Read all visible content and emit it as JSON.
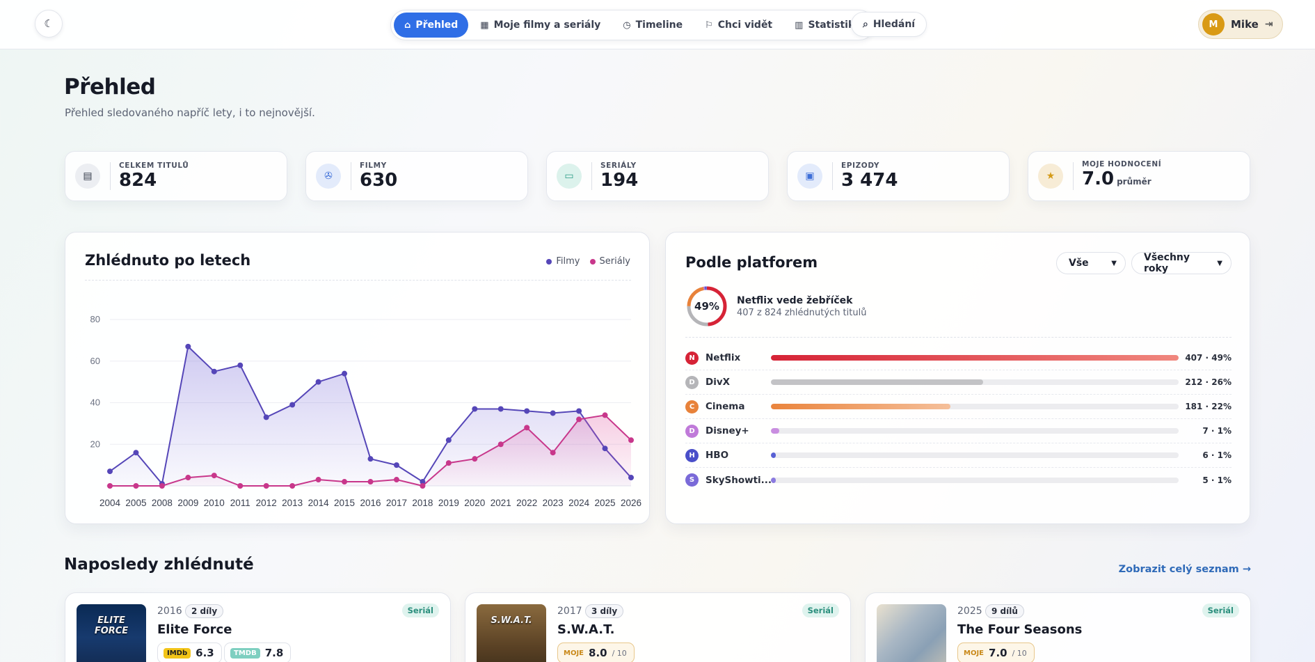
{
  "nav": {
    "items": [
      {
        "label": "Přehled",
        "icon": "home-icon"
      },
      {
        "label": "Moje filmy a seriály",
        "icon": "grid-icon"
      },
      {
        "label": "Timeline",
        "icon": "clock-icon"
      },
      {
        "label": "Chci vidět",
        "icon": "bookmark-icon"
      },
      {
        "label": "Statistiky",
        "icon": "bar-chart-icon"
      }
    ],
    "search_label": "Hledání",
    "user": {
      "initial": "M",
      "name": "Mike"
    }
  },
  "header": {
    "title": "Přehled",
    "subtitle": "Přehled sledovaného napříč lety, i to nejnovější."
  },
  "stats": [
    {
      "label": "CELKEM TITULŮ",
      "value": "824",
      "suffix": "",
      "icon": "calendar-icon",
      "color": "#eceef2",
      "fg": "#333a48"
    },
    {
      "label": "FILMY",
      "value": "630",
      "suffix": "",
      "icon": "film-reel-icon",
      "color": "#e3ebfb",
      "fg": "#3e6fd8"
    },
    {
      "label": "SERIÁLY",
      "value": "194",
      "suffix": "",
      "icon": "tv-icon",
      "color": "#dcf2ec",
      "fg": "#2b9c86"
    },
    {
      "label": "EPIZODY",
      "value": "3 474",
      "suffix": "",
      "icon": "episodes-icon",
      "color": "#e3ebfb",
      "fg": "#3e6fd8"
    },
    {
      "label": "MOJE HODNOCENÍ",
      "value": "7.0",
      "suffix": "průměr",
      "icon": "star-icon",
      "color": "#f7ecd6",
      "fg": "#d49a18"
    }
  ],
  "chart_panel": {
    "title": "Zhlédnuto po letech"
  },
  "chart_data": {
    "type": "line",
    "title": "Zhlédnuto po letech",
    "x": [
      "2004",
      "2005",
      "2008",
      "2009",
      "2010",
      "2011",
      "2012",
      "2013",
      "2014",
      "2015",
      "2016",
      "2017",
      "2018",
      "2019",
      "2020",
      "2021",
      "2022",
      "2023",
      "2024",
      "2025",
      "2026"
    ],
    "series": [
      {
        "name": "Filmy",
        "color": "#5546b8",
        "values": [
          7,
          16,
          1,
          67,
          55,
          58,
          33,
          39,
          50,
          54,
          13,
          10,
          2,
          22,
          37,
          37,
          36,
          35,
          36,
          18,
          4
        ]
      },
      {
        "name": "Seriály",
        "color": "#c8378b",
        "values": [
          0,
          0,
          0,
          4,
          5,
          0,
          0,
          0,
          3,
          2,
          2,
          3,
          0,
          11,
          13,
          20,
          28,
          16,
          32,
          34,
          22
        ]
      }
    ],
    "yticks": [
      20,
      40,
      60,
      80
    ],
    "ylim": [
      0,
      80
    ],
    "grid": true,
    "legend": "top-right"
  },
  "platform_panel": {
    "title": "Podle platforem",
    "filter_type": "Vše",
    "filter_years": "Všechny roky",
    "leader_percent": "49%",
    "leader_share": 0.49,
    "leader_title": "Netflix vede žebříček",
    "leader_sub": "407 z 824 zhlédnutých titulů",
    "platforms": [
      {
        "name": "Netflix",
        "initial": "N",
        "value": "407 · 49%",
        "share": 1.0,
        "color": "#d62336",
        "fill": "linear-gradient(90deg,#d62336,#f0877e)"
      },
      {
        "name": "DivX",
        "initial": "D",
        "value": "212 · 26%",
        "share": 0.52,
        "color": "#b5b5b8",
        "fill": "#c3c3c6"
      },
      {
        "name": "Cinema",
        "initial": "C",
        "value": "181 · 22%",
        "share": 0.44,
        "color": "#e8823a",
        "fill": "linear-gradient(90deg,#ea843c,#f5bf9a)"
      },
      {
        "name": "Disney+",
        "initial": "D",
        "value": "7 · 1%",
        "share": 0.02,
        "color": "#c07ad9",
        "fill": "#c98ee0"
      },
      {
        "name": "HBO",
        "initial": "H",
        "value": "6 · 1%",
        "share": 0.01,
        "color": "#4a4fc9",
        "fill": "#5860d4"
      },
      {
        "name": "SkyShowti...",
        "initial": "S",
        "value": "5 · 1%",
        "share": 0.01,
        "color": "#7a6ad8",
        "fill": "#8b7ae0"
      }
    ]
  },
  "recent": {
    "title": "Naposledy zhlédnuté",
    "see_all": "Zobrazit celý seznam →",
    "items": [
      {
        "year": "2016",
        "parts": "2 díly",
        "type": "Seriál",
        "title": "Elite Force",
        "poster_text": "ELITE FORCE",
        "ratings": [
          {
            "tag": "IMDb",
            "value": "6.3",
            "of": ""
          },
          {
            "tag": "TMDB",
            "value": "7.8",
            "of": ""
          }
        ]
      },
      {
        "year": "2017",
        "parts": "3 díly",
        "type": "Seriál",
        "title": "S.W.A.T.",
        "poster_text": "S.W.A.T.",
        "ratings": [
          {
            "tag": "MOJE",
            "value": "8.0",
            "of": "/ 10"
          }
        ]
      },
      {
        "year": "2025",
        "parts": "9 dílů",
        "type": "Seriál",
        "title": "The Four Seasons",
        "poster_text": "",
        "ratings": [
          {
            "tag": "MOJE",
            "value": "7.0",
            "of": "/ 10"
          }
        ]
      }
    ]
  }
}
